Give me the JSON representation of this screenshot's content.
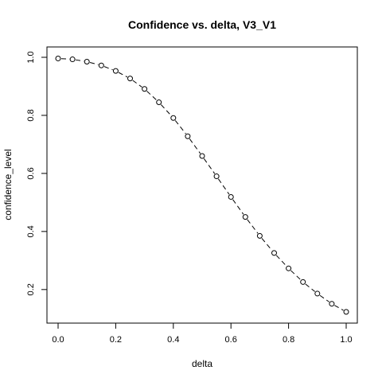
{
  "chart_data": {
    "type": "line",
    "title": "Confidence vs. delta, V3_V1",
    "xlabel": "delta",
    "ylabel": "confidence_level",
    "xlim": [
      0.0,
      1.0
    ],
    "ylim": [
      0.12,
      1.0
    ],
    "xticks": [
      "0.0",
      "0.2",
      "0.4",
      "0.6",
      "0.8",
      "1.0"
    ],
    "yticks": [
      "0.2",
      "0.4",
      "0.6",
      "0.8",
      "1.0"
    ],
    "grid": false,
    "line_style": "dashed",
    "marker": "open-circle",
    "series": [
      {
        "x": [
          0.0,
          0.05,
          0.1,
          0.15,
          0.2,
          0.25,
          0.3,
          0.35,
          0.4,
          0.45,
          0.5,
          0.55,
          0.6,
          0.65,
          0.7,
          0.75,
          0.8,
          0.85,
          0.9,
          0.95,
          1.0
        ],
        "y": [
          0.996,
          0.993,
          0.985,
          0.972,
          0.953,
          0.927,
          0.891,
          0.845,
          0.791,
          0.728,
          0.66,
          0.59,
          0.519,
          0.45,
          0.385,
          0.326,
          0.273,
          0.226,
          0.186,
          0.151,
          0.123
        ]
      }
    ]
  }
}
